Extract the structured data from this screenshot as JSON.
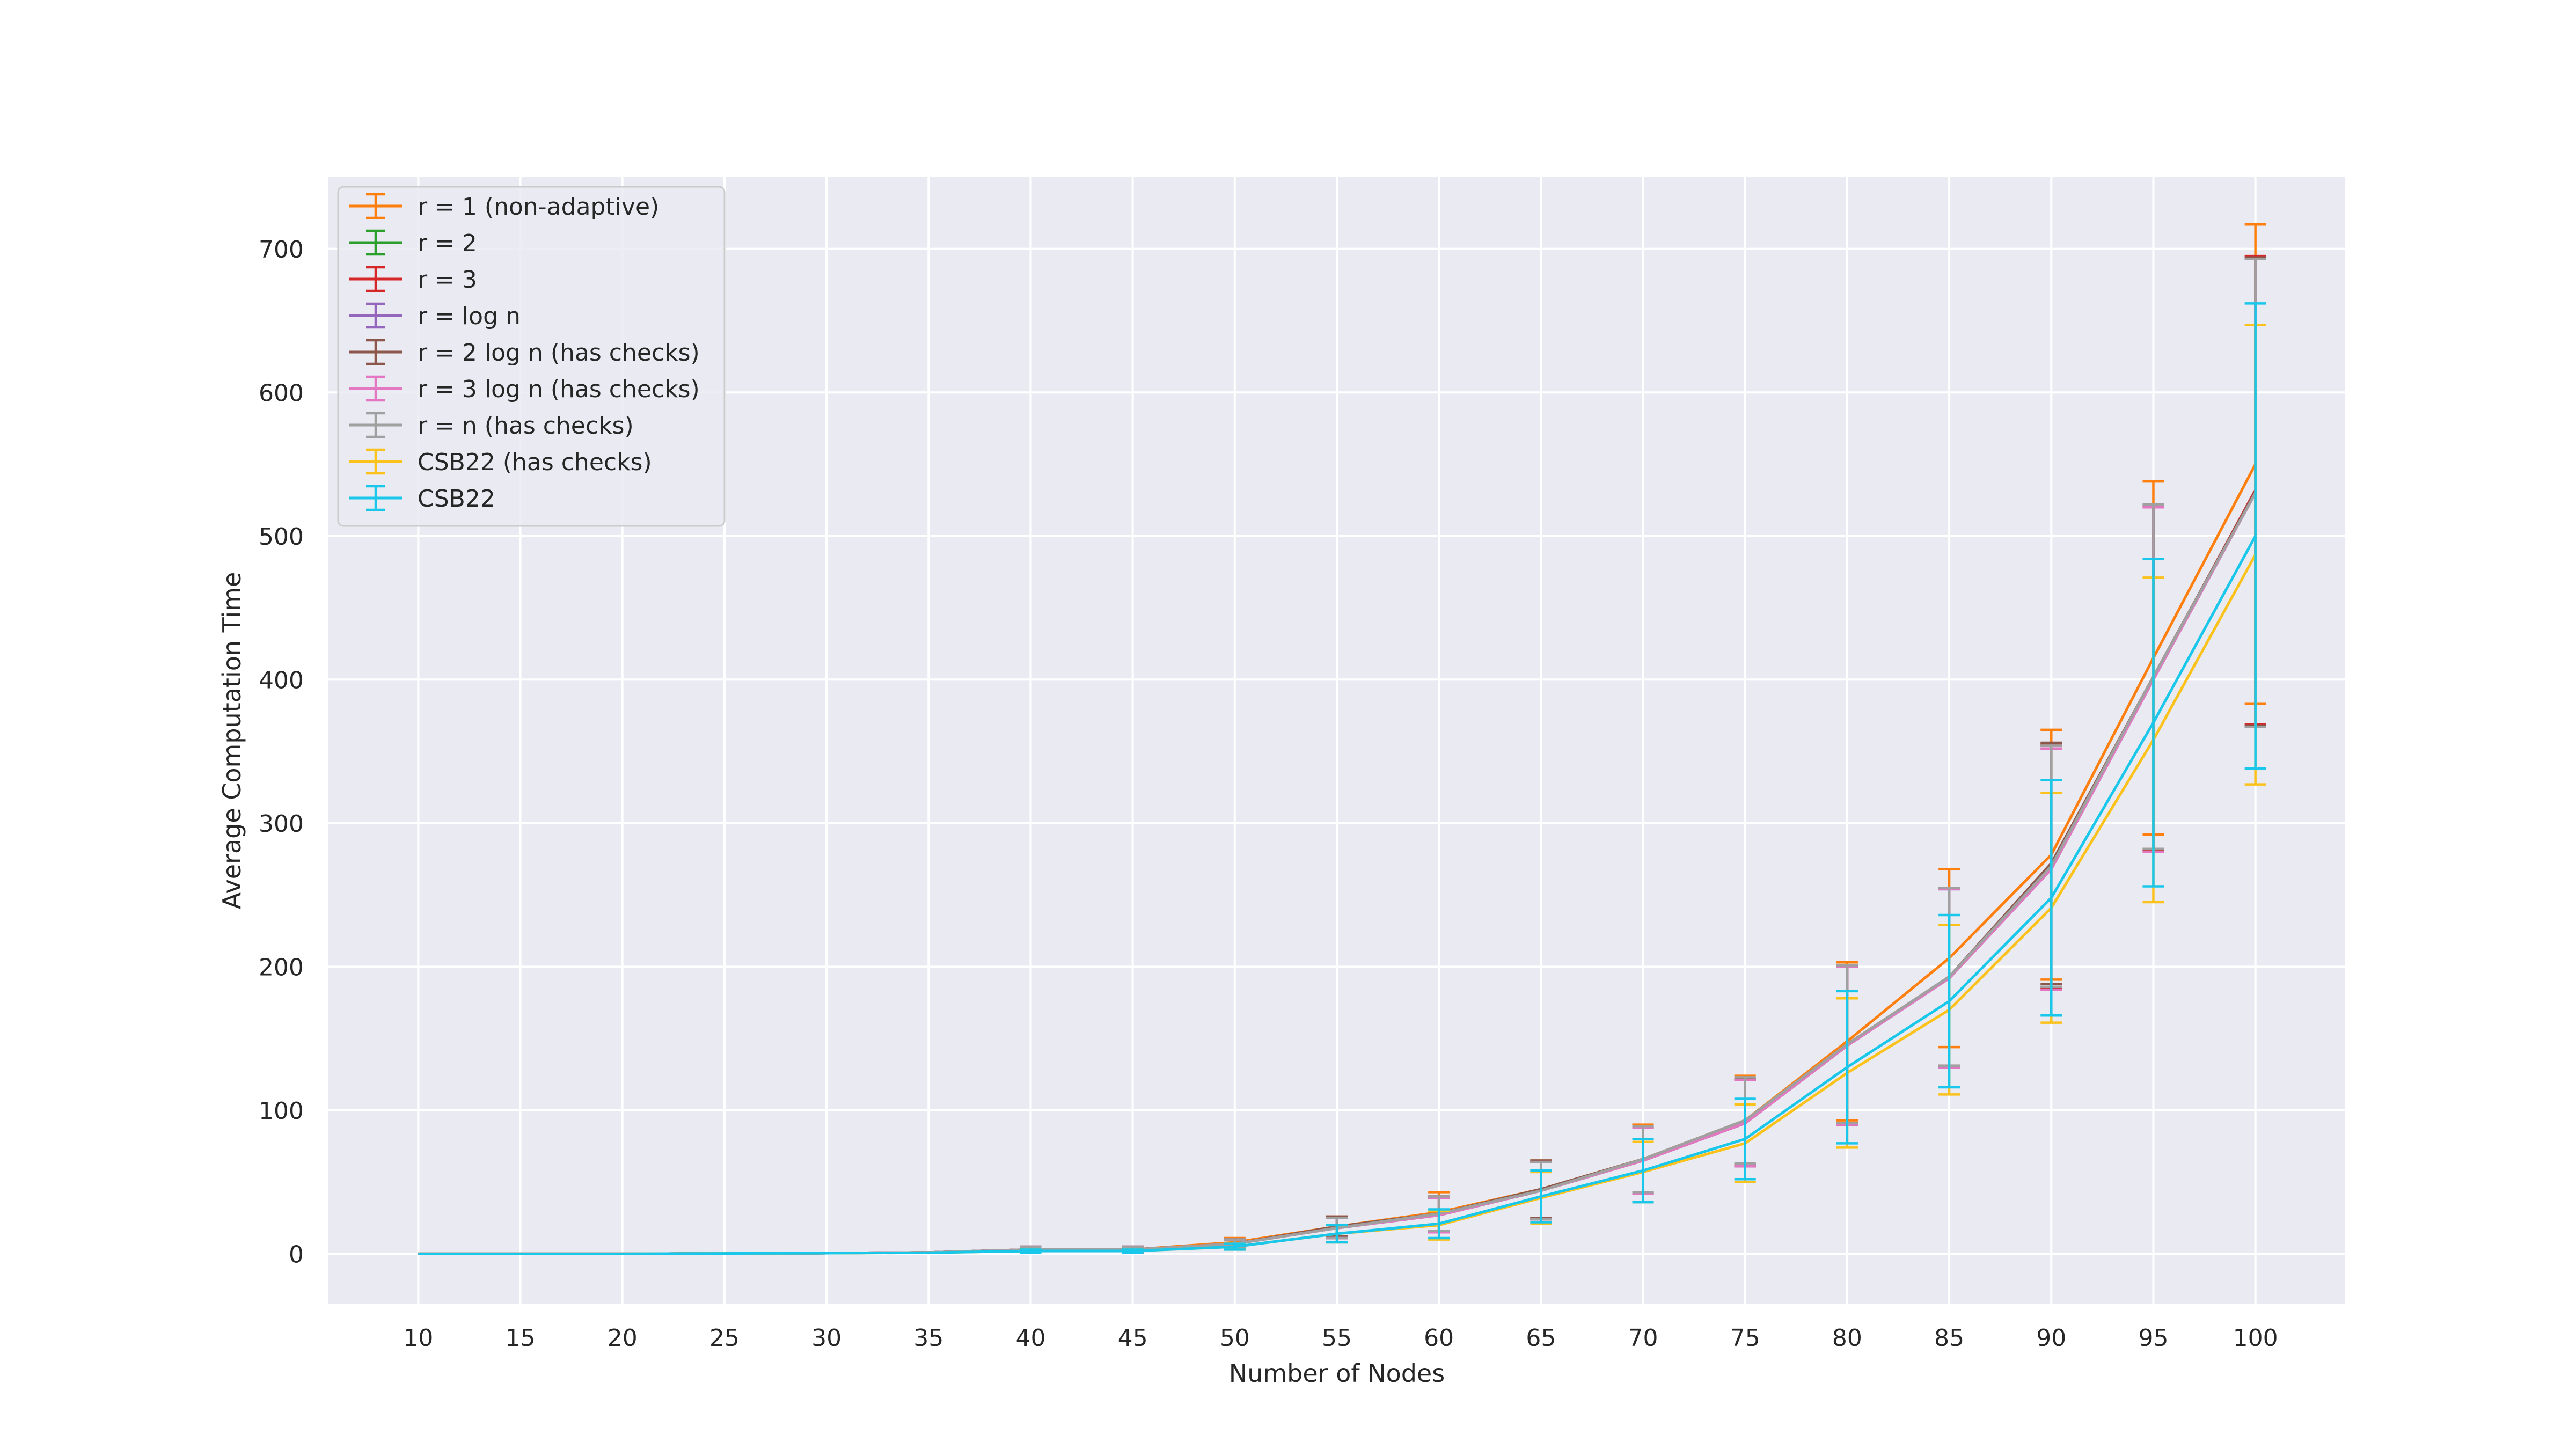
{
  "chart_data": {
    "type": "line",
    "title": "",
    "xlabel": "Number of Nodes",
    "ylabel": "Average Computation Time",
    "xlim": [
      5.6,
      104.4
    ],
    "ylim": [
      -35,
      750
    ],
    "xticks": [
      10,
      15,
      20,
      25,
      30,
      35,
      40,
      45,
      50,
      55,
      60,
      65,
      70,
      75,
      80,
      85,
      90,
      95,
      100
    ],
    "yticks": [
      0,
      100,
      200,
      300,
      400,
      500,
      600,
      700
    ],
    "grid": true,
    "legend_position": "top-left",
    "x": [
      10,
      15,
      20,
      25,
      30,
      35,
      40,
      45,
      50,
      55,
      60,
      65,
      70,
      75,
      80,
      85,
      90,
      95,
      100
    ],
    "series": [
      {
        "name": "r = 1 (non-adaptive)",
        "color": "#ff7f0e",
        "values": [
          0,
          0,
          0,
          0.3,
          0.5,
          1,
          3,
          3,
          8,
          19,
          29,
          45,
          66,
          93,
          148,
          206,
          278,
          415,
          550
        ],
        "err": [
          0,
          0,
          0,
          0.2,
          0.3,
          0.5,
          2,
          2,
          3,
          7,
          14,
          20,
          24,
          31,
          55,
          62,
          87,
          123,
          167
        ]
      },
      {
        "name": "r = 2",
        "color": "#2ca02c",
        "values": [
          0,
          0,
          0,
          0.3,
          0.5,
          1,
          3,
          3,
          7,
          18,
          27,
          44,
          65,
          91,
          145,
          193,
          270,
          401,
          530
        ],
        "err": [
          0,
          0,
          0,
          0.2,
          0.3,
          0.5,
          2,
          2,
          3,
          7,
          12,
          20,
          23,
          30,
          55,
          62,
          84,
          120,
          163
        ]
      },
      {
        "name": "r = 3",
        "color": "#d62728",
        "values": [
          0,
          0,
          0,
          0.3,
          0.5,
          1,
          3,
          3,
          7,
          18,
          27,
          44,
          65,
          91,
          145,
          193,
          270,
          401,
          532
        ],
        "err": [
          0,
          0,
          0,
          0.2,
          0.3,
          0.5,
          2,
          2,
          3,
          7,
          12,
          20,
          23,
          30,
          55,
          62,
          85,
          120,
          163
        ]
      },
      {
        "name": "r = log n",
        "color": "#9467bd",
        "values": [
          0,
          0,
          0,
          0.3,
          0.5,
          1,
          3,
          3,
          7,
          18,
          27,
          44,
          65,
          91,
          145,
          192,
          268,
          400,
          530
        ],
        "err": [
          0,
          0,
          0,
          0.2,
          0.3,
          0.5,
          2,
          2,
          3,
          7,
          12,
          20,
          23,
          30,
          55,
          62,
          84,
          120,
          163
        ]
      },
      {
        "name": "r = 2 log n (has checks)",
        "color": "#8c564b",
        "values": [
          0,
          0,
          0,
          0.3,
          0.5,
          1,
          3,
          3,
          7,
          19,
          28,
          45,
          66,
          92,
          146,
          193,
          272,
          402,
          531
        ],
        "err": [
          0,
          0,
          0,
          0.2,
          0.3,
          0.5,
          2,
          2,
          3,
          7,
          12,
          20,
          23,
          30,
          55,
          62,
          84,
          120,
          163
        ]
      },
      {
        "name": "r = 3 log n (has checks)",
        "color": "#e377c2",
        "values": [
          0,
          0,
          0,
          0.3,
          0.5,
          1,
          3,
          3,
          7,
          18,
          27,
          44,
          65,
          91,
          145,
          192,
          268,
          400,
          530
        ],
        "err": [
          0,
          0,
          0,
          0.2,
          0.3,
          0.5,
          2,
          2,
          3,
          7,
          12,
          20,
          23,
          30,
          55,
          62,
          84,
          120,
          163
        ]
      },
      {
        "name": "r = n (has checks)",
        "color": "#a0a0a0",
        "values": [
          0,
          0,
          0,
          0.3,
          0.5,
          1,
          3,
          3,
          7,
          18,
          28,
          44,
          66,
          93,
          146,
          193,
          270,
          402,
          530
        ],
        "err": [
          0,
          0,
          0,
          0.2,
          0.3,
          0.5,
          2,
          2,
          3,
          7,
          12,
          20,
          23,
          30,
          55,
          62,
          84,
          120,
          163
        ]
      },
      {
        "name": "CSB22 (has checks)",
        "color": "#fbc21b",
        "values": [
          0,
          0,
          0,
          0.3,
          0.5,
          0.8,
          2,
          2,
          5,
          14,
          20,
          39,
          57,
          77,
          126,
          170,
          241,
          358,
          487
        ],
        "err": [
          0,
          0,
          0,
          0.2,
          0.3,
          0.5,
          1,
          1,
          2,
          6,
          10,
          18,
          21,
          27,
          52,
          59,
          80,
          113,
          160
        ]
      },
      {
        "name": "CSB22",
        "color": "#19c7ea",
        "values": [
          0,
          0,
          0,
          0.3,
          0.5,
          0.8,
          2,
          2,
          5,
          14,
          21,
          40,
          58,
          80,
          130,
          176,
          248,
          370,
          500
        ],
        "err": [
          0,
          0,
          0,
          0.2,
          0.3,
          0.5,
          1,
          1,
          2,
          6,
          10,
          18,
          22,
          28,
          53,
          60,
          82,
          114,
          162
        ]
      }
    ]
  }
}
